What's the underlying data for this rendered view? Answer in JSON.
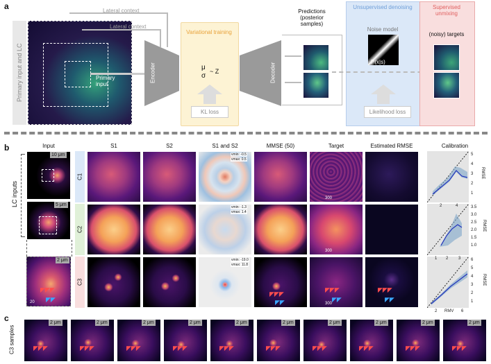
{
  "panel_a": {
    "letter": "a",
    "side_label": "Primary input and LC",
    "lateral_context_1": "Lateral context",
    "lateral_context_2": "Lateral context",
    "primary_input": "Primary input",
    "encoder": "Encoder",
    "variational_training": "Variational training",
    "mu": "μ",
    "sigma": "σ",
    "z": "~ Z",
    "kl_loss": "KL loss",
    "decoder": "Decoder",
    "predictions": "Predictions (posterior samples)",
    "unsupervised_denoising": "Unsupervised denoising",
    "noise_model": "Noise model",
    "pxs": "P(x|s)",
    "likelihood_loss": "Likelihood loss",
    "supervised_unmixing": "Supervised unmixing",
    "targets": "(noisy) targets",
    "colors": {
      "variational": "#fdf3d4",
      "variational_text": "#e8a23a",
      "denoise": "#dbe8f8",
      "denoise_text": "#6e9ed8",
      "unmix": "#f9dede",
      "unmix_text": "#e06060"
    }
  },
  "panel_b": {
    "letter": "b",
    "lc_inputs": "LC inputs",
    "headers": [
      "Input",
      "S1",
      "S2",
      "S1 and S2",
      "MMSE (50)",
      "Target",
      "Estimated RMSE",
      "Calibration"
    ],
    "rows": [
      {
        "tag": "C1",
        "vmin": "vmin: -0.5",
        "vmax": "vmax: 0.5",
        "target_scale": "300",
        "xticks": [
          "2",
          "4"
        ],
        "yticks": [
          "5",
          "4",
          "3",
          "2",
          "1"
        ],
        "ylabel": "RMSE"
      },
      {
        "tag": "C2",
        "vmin": "vmin: -1.3",
        "vmax": "vmax: 1.4",
        "target_scale": "300",
        "xticks": [
          "1",
          "2",
          "3"
        ],
        "yticks": [
          "3.5",
          "3.0",
          "2.5",
          "2.0",
          "1.5",
          "1.0"
        ],
        "ylabel": "RMSE"
      },
      {
        "tag": "C3",
        "vmin": "vmin: -19.0",
        "vmax": "vmax: 11.8",
        "target_scale": "300",
        "xticks": [
          "2",
          "RMV",
          "6"
        ],
        "yticks": [
          "6",
          "5",
          "4",
          "3",
          "2",
          "1"
        ],
        "ylabel": "RMSE"
      }
    ],
    "scale_10": "10 μm",
    "scale_5": "5 μm",
    "scale_2": "2 μm",
    "input_scale_label": "20"
  },
  "panel_c": {
    "letter": "c",
    "side_label": "C3 samples",
    "scale": "2 μm",
    "count": 10
  }
}
